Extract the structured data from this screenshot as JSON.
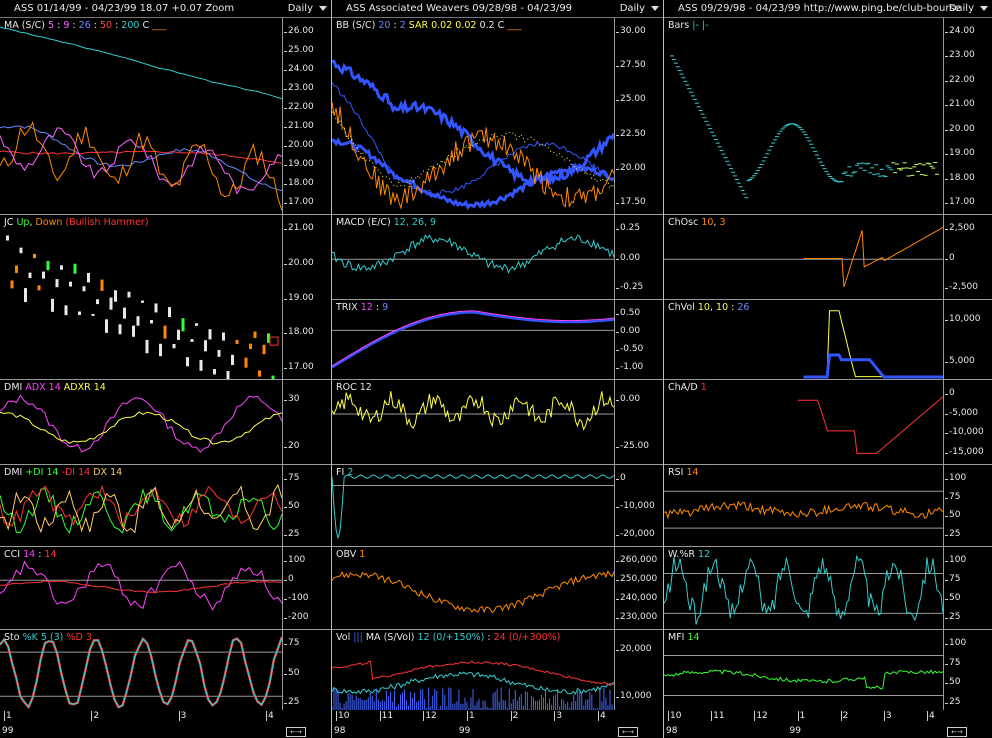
{
  "columns": [
    {
      "header": {
        "title": "ASS  01/14/99 - 04/23/99   18.07  +0.07   Zoom",
        "period": "Daily"
      },
      "panels": [
        {
          "label": [
            {
              "t": "MA (S/C) ",
              "c": "#e8e8e8"
            },
            {
              "t": "5",
              "c": "#ff66ff"
            },
            {
              "t": " : ",
              "c": "#e8e8e8"
            },
            {
              "t": "9",
              "c": "#ff66ff"
            },
            {
              "t": " : ",
              "c": "#e8e8e8"
            },
            {
              "t": "26",
              "c": "#6688ff"
            },
            {
              "t": " : ",
              "c": "#e8e8e8"
            },
            {
              "t": "50",
              "c": "#ff4444"
            },
            {
              "t": " : ",
              "c": "#e8e8e8"
            },
            {
              "t": "200",
              "c": "#33cccc"
            },
            {
              "t": "   C ",
              "c": "#e8e8e8"
            },
            {
              "t": "___",
              "c": "#ff8800"
            }
          ],
          "ticks": [
            "26.00",
            "25.00",
            "24.00",
            "23.00",
            "22.00",
            "21.00",
            "20.00",
            "19.00",
            "18.00",
            "17.00"
          ]
        },
        {
          "label": [
            {
              "t": "JC ",
              "c": "#e8e8e8"
            },
            {
              "t": "Up",
              "c": "#33ff33"
            },
            {
              "t": ", ",
              "c": "#e8e8e8"
            },
            {
              "t": "Down",
              "c": "#ff8800"
            },
            {
              "t": " (Bullish Hammer)",
              "c": "#ff3333"
            }
          ],
          "ticks": [
            "21.00",
            "20.00",
            "19.00",
            "18.00",
            "17.00"
          ]
        },
        {
          "label": [
            {
              "t": "DMI ",
              "c": "#e8e8e8"
            },
            {
              "t": "ADX 14",
              "c": "#ff44ff"
            },
            {
              "t": " ADXR 14",
              "c": "#ffff44"
            }
          ],
          "ticks": [
            "30",
            "20"
          ]
        },
        {
          "label": [
            {
              "t": "DMI ",
              "c": "#e8e8e8"
            },
            {
              "t": "+DI 14",
              "c": "#33ff33"
            },
            {
              "t": "  -DI 14",
              "c": "#ff3333"
            },
            {
              "t": "  DX 14",
              "c": "#ffcc66"
            }
          ],
          "ticks": [
            "75",
            "50",
            "25"
          ]
        },
        {
          "label": [
            {
              "t": "CCI ",
              "c": "#e8e8e8"
            },
            {
              "t": "14",
              "c": "#ff44ff"
            },
            {
              "t": " : ",
              "c": "#e8e8e8"
            },
            {
              "t": "14",
              "c": "#ff3333"
            }
          ],
          "ticks": [
            "100",
            "0",
            "-100",
            "-200"
          ]
        },
        {
          "label": [
            {
              "t": "Sto ",
              "c": "#e8e8e8"
            },
            {
              "t": "%K 5 (3)",
              "c": "#33cccc"
            },
            {
              "t": "  %D 3",
              "c": "#ff3333"
            }
          ],
          "ticks": [
            "75",
            "50",
            "25"
          ]
        }
      ],
      "xaxis": {
        "labels": [
          "1",
          "2",
          "3",
          "4"
        ],
        "year": "99"
      }
    },
    {
      "header": {
        "title": "ASS   Associated Weavers  09/28/98 - 04/23/99",
        "period": "Daily"
      },
      "panels": [
        {
          "label": [
            {
              "t": "BB (S/C) ",
              "c": "#e8e8e8"
            },
            {
              "t": "20",
              "c": "#6688ff"
            },
            {
              "t": " : ",
              "c": "#e8e8e8"
            },
            {
              "t": "2",
              "c": "#6688ff"
            },
            {
              "t": "   SAR  0.02  ",
              "c": "#ffff44"
            },
            {
              "t": "0.02",
              "c": "#ffff44"
            },
            {
              "t": "  0.2    C ",
              "c": "#e8e8e8"
            },
            {
              "t": "___",
              "c": "#ff8800"
            }
          ],
          "ticks": [
            "30.00",
            "27.50",
            "25.00",
            "22.50",
            "20.00",
            "17.50"
          ]
        },
        {
          "label": [
            {
              "t": "MACD (E/C) ",
              "c": "#e8e8e8"
            },
            {
              "t": "12, 26, 9",
              "c": "#33cccc"
            }
          ],
          "ticks": [
            "0.25",
            "0.00",
            "-0.25"
          ]
        },
        {
          "label": [
            {
              "t": "TRIX  ",
              "c": "#e8e8e8"
            },
            {
              "t": "12",
              "c": "#ff44ff"
            },
            {
              "t": " : ",
              "c": "#e8e8e8"
            },
            {
              "t": "9",
              "c": "#6688ff"
            }
          ],
          "ticks": [
            "0.50",
            "0.00",
            "-0.50",
            "-1.00"
          ]
        },
        {
          "label": [
            {
              "t": "ROC  12",
              "c": "#e8e8e8"
            }
          ],
          "ticks": [
            "0.00",
            "-25.00"
          ]
        },
        {
          "label": [
            {
              "t": "FI  ",
              "c": "#e8e8e8"
            },
            {
              "t": "2",
              "c": "#33cccc"
            }
          ],
          "ticks": [
            "0",
            "-10,000",
            "-20,000"
          ]
        },
        {
          "label": [
            {
              "t": "OBV  ",
              "c": "#e8e8e8"
            },
            {
              "t": "1",
              "c": "#ff8800"
            }
          ],
          "ticks": [
            "260,000",
            "250,000",
            "240,000",
            "230,000"
          ]
        },
        {
          "label": [
            {
              "t": "Vol ",
              "c": "#e8e8e8"
            },
            {
              "t": "|||",
              "c": "#4466ff"
            },
            {
              "t": "   MA (S/Vol)  ",
              "c": "#e8e8e8"
            },
            {
              "t": "12 (0/+150%)",
              "c": "#33cccc"
            },
            {
              "t": " : ",
              "c": "#e8e8e8"
            },
            {
              "t": "24 (0/+300%)",
              "c": "#ff3333"
            }
          ],
          "ticks": [
            "20,000",
            "10,000"
          ]
        }
      ],
      "xaxis": {
        "labels": [
          "10",
          "11",
          "12",
          "1",
          "2",
          "3",
          "4"
        ],
        "year": "98",
        "year2": "99"
      }
    },
    {
      "header": {
        "title": "ASS   09/29/98 - 04/23/99    http://www.ping.be/club-bourse",
        "period": "Daily"
      },
      "panels": [
        {
          "label": [
            {
              "t": "Bars  ",
              "c": "#e8e8e8"
            },
            {
              "t": "|-  |-",
              "c": "#33cccc"
            }
          ],
          "ticks": [
            "24.00",
            "23.00",
            "22.00",
            "21.00",
            "20.00",
            "19.00",
            "18.00",
            "17.00"
          ]
        },
        {
          "label": [
            {
              "t": "ChOsc  ",
              "c": "#e8e8e8"
            },
            {
              "t": "10",
              "c": "#ff8800"
            },
            {
              "t": ", ",
              "c": "#e8e8e8"
            },
            {
              "t": "3",
              "c": "#ff8800"
            }
          ],
          "ticks": [
            "2,500",
            "0",
            "-2,500"
          ]
        },
        {
          "label": [
            {
              "t": "ChVol  ",
              "c": "#e8e8e8"
            },
            {
              "t": "10",
              "c": "#ffff44"
            },
            {
              "t": ", ",
              "c": "#e8e8e8"
            },
            {
              "t": "10",
              "c": "#ffff44"
            },
            {
              "t": " : ",
              "c": "#e8e8e8"
            },
            {
              "t": "26",
              "c": "#6688ff"
            }
          ],
          "ticks": [
            "10,000",
            "5,000"
          ]
        },
        {
          "label": [
            {
              "t": "ChA/D  ",
              "c": "#e8e8e8"
            },
            {
              "t": "1",
              "c": "#ff3333"
            }
          ],
          "ticks": [
            "0",
            "-5,000",
            "-10,000",
            "-15,000"
          ]
        },
        {
          "label": [
            {
              "t": "RSI  ",
              "c": "#e8e8e8"
            },
            {
              "t": "14",
              "c": "#ff8800"
            }
          ],
          "ticks": [
            "100",
            "75",
            "50",
            "25"
          ]
        },
        {
          "label": [
            {
              "t": "W.%R  ",
              "c": "#e8e8e8"
            },
            {
              "t": "12",
              "c": "#33cccc"
            }
          ],
          "ticks": [
            "100",
            "75",
            "50",
            "25"
          ]
        },
        {
          "label": [
            {
              "t": "MFI  ",
              "c": "#e8e8e8"
            },
            {
              "t": "14",
              "c": "#33ff33"
            }
          ],
          "ticks": [
            "100",
            "75",
            "50",
            "25"
          ]
        }
      ],
      "xaxis": {
        "labels": [
          "10",
          "11",
          "12",
          "1",
          "2",
          "3",
          "4"
        ],
        "year": "98",
        "year2": "99"
      }
    }
  ],
  "colors": {
    "background": "#000000",
    "grid": "#9a9a9a",
    "text": "#e8e8e8"
  }
}
